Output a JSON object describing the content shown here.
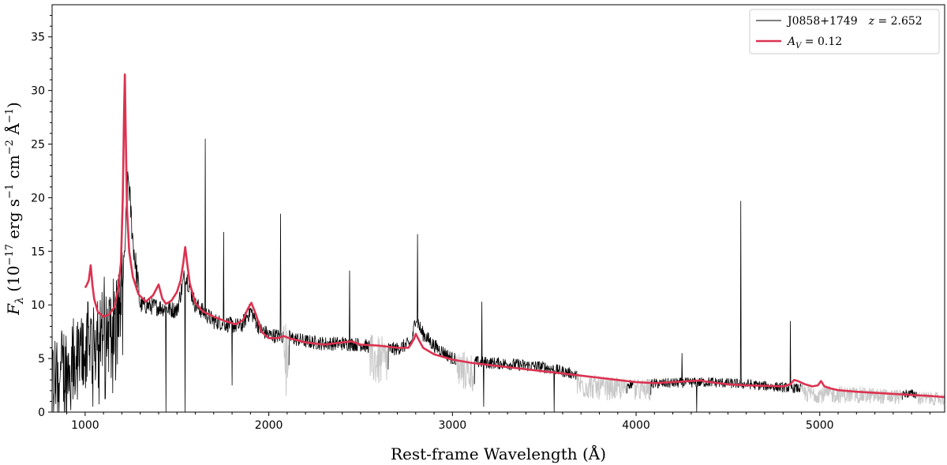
{
  "chart_data": {
    "type": "line",
    "xlabel": "Rest-frame Wavelength  (Å)",
    "ylabel": "F_λ (10^−17 erg s^−1 cm^−2 Å^−1)",
    "xlim": [
      820,
      5680
    ],
    "ylim": [
      0,
      38
    ],
    "xticks": [
      1000,
      2000,
      3000,
      4000,
      5000
    ],
    "yticks": [
      0,
      5,
      10,
      15,
      20,
      25,
      30,
      35
    ],
    "xtick_labels": [
      "1000",
      "2000",
      "3000",
      "4000",
      "5000"
    ],
    "ytick_labels": [
      "0",
      "5",
      "10",
      "15",
      "20",
      "25",
      "30",
      "35"
    ],
    "grid": false,
    "legend_position": "top-right",
    "colors": {
      "spectrum": "#000000",
      "masked": "#c8c8c8",
      "model": "#dc3250"
    },
    "legend": [
      {
        "label": "J0858+1749",
        "extra": "z = 2.652",
        "color": "#000000"
      },
      {
        "label": "A_V = 0.12",
        "color": "#dc3250"
      }
    ],
    "series": [
      {
        "name": "J0858+1749",
        "color": "#000000",
        "continuum": [
          [
            820,
            3
          ],
          [
            950,
            4.5
          ],
          [
            1050,
            7
          ],
          [
            1150,
            8
          ],
          [
            1210,
            11
          ],
          [
            1220,
            17
          ],
          [
            1235,
            22
          ],
          [
            1260,
            16
          ],
          [
            1300,
            10
          ],
          [
            1400,
            9.8
          ],
          [
            1500,
            9.5
          ],
          [
            1545,
            13
          ],
          [
            1600,
            10
          ],
          [
            1700,
            8.5
          ],
          [
            1800,
            8.1
          ],
          [
            1850,
            8
          ],
          [
            1900,
            9.5
          ],
          [
            1950,
            7.8
          ],
          [
            2000,
            7.2
          ],
          [
            2100,
            7
          ],
          [
            2200,
            6.6
          ],
          [
            2300,
            6.4
          ],
          [
            2400,
            6.4
          ],
          [
            2500,
            6.3
          ],
          [
            2600,
            5.9
          ],
          [
            2700,
            5.9
          ],
          [
            2780,
            6.5
          ],
          [
            2800,
            9
          ],
          [
            2830,
            7.5
          ],
          [
            2900,
            6.2
          ],
          [
            3000,
            5
          ],
          [
            3100,
            4.7
          ],
          [
            3300,
            4.5
          ],
          [
            3500,
            4.2
          ],
          [
            3650,
            3.6
          ],
          [
            3700,
            3.2
          ],
          [
            3800,
            2.8
          ],
          [
            4000,
            2.6
          ],
          [
            4200,
            2.7
          ],
          [
            4400,
            2.8
          ],
          [
            4600,
            2.6
          ],
          [
            4800,
            2.3
          ],
          [
            5000,
            2.1
          ],
          [
            5200,
            2
          ],
          [
            5400,
            1.8
          ],
          [
            5680,
            1.5
          ]
        ],
        "spikes": [
          [
            1655,
            25.5
          ],
          [
            1755,
            16.8
          ],
          [
            2065,
            18.5
          ],
          [
            2440,
            13.2
          ],
          [
            2810,
            16.6
          ],
          [
            3160,
            10.3
          ],
          [
            4570,
            19.7
          ],
          [
            4840,
            8.5
          ],
          [
            4250,
            5.5
          ]
        ],
        "dips": [
          [
            1440,
            0
          ],
          [
            1545,
            0
          ],
          [
            1800,
            2.5
          ],
          [
            2095,
            1.5
          ],
          [
            3170,
            0.5
          ],
          [
            3555,
            0
          ],
          [
            4330,
            0
          ]
        ]
      },
      {
        "name": "masked",
        "color": "#c8c8c8",
        "ranges": [
          [
            2080,
            2110
          ],
          [
            2550,
            2650
          ],
          [
            3020,
            3120
          ],
          [
            3680,
            3950
          ],
          [
            3990,
            4080
          ],
          [
            4900,
            5450
          ],
          [
            5530,
            5680
          ]
        ]
      },
      {
        "name": "A_V = 0.12",
        "color": "#dc3250",
        "x": [
          1000,
          1010,
          1020,
          1030,
          1040,
          1050,
          1070,
          1100,
          1130,
          1160,
          1180,
          1195,
          1205,
          1212,
          1216,
          1220,
          1228,
          1240,
          1260,
          1290,
          1330,
          1370,
          1400,
          1420,
          1440,
          1470,
          1500,
          1520,
          1535,
          1545,
          1555,
          1570,
          1600,
          1640,
          1700,
          1760,
          1820,
          1860,
          1885,
          1905,
          1930,
          1960,
          2000,
          2050,
          2080,
          2110,
          2200,
          2300,
          2400,
          2450,
          2500,
          2600,
          2700,
          2760,
          2790,
          2800,
          2815,
          2840,
          2900,
          3000,
          3100,
          3200,
          3300,
          3400,
          3500,
          3600,
          3700,
          3800,
          3900,
          4000,
          4100,
          4200,
          4300,
          4350,
          4400,
          4500,
          4600,
          4700,
          4800,
          4840,
          4860,
          4880,
          4920,
          4960,
          4990,
          5007,
          5025,
          5060,
          5100,
          5200,
          5300,
          5400,
          5500,
          5600,
          5680
        ],
        "y": [
          11.6,
          11.9,
          12.3,
          13.7,
          11.8,
          10.5,
          9.3,
          8.9,
          9.1,
          9.8,
          11.5,
          14,
          20,
          28,
          31.5,
          27,
          19,
          15,
          12.6,
          11,
          10.3,
          10.9,
          11.9,
          10.6,
          10.1,
          10.4,
          11.2,
          12.3,
          14,
          15.4,
          14,
          12,
          10.2,
          9.4,
          8.9,
          8.5,
          8.2,
          8.6,
          9.6,
          10.2,
          9.1,
          7.5,
          6.9,
          6.9,
          7.1,
          6.9,
          6.5,
          6.3,
          6.5,
          6.6,
          6.3,
          6.2,
          6,
          6,
          6.8,
          7.3,
          6.8,
          6,
          5.4,
          4.9,
          4.6,
          4.4,
          4.2,
          4,
          3.8,
          3.6,
          3.4,
          3.2,
          3,
          2.8,
          2.7,
          2.8,
          2.9,
          2.95,
          2.8,
          2.6,
          2.5,
          2.45,
          2.4,
          2.6,
          3.0,
          2.9,
          2.6,
          2.4,
          2.5,
          2.9,
          2.4,
          2.2,
          2.05,
          1.9,
          1.8,
          1.7,
          1.6,
          1.5,
          1.4
        ]
      }
    ]
  }
}
